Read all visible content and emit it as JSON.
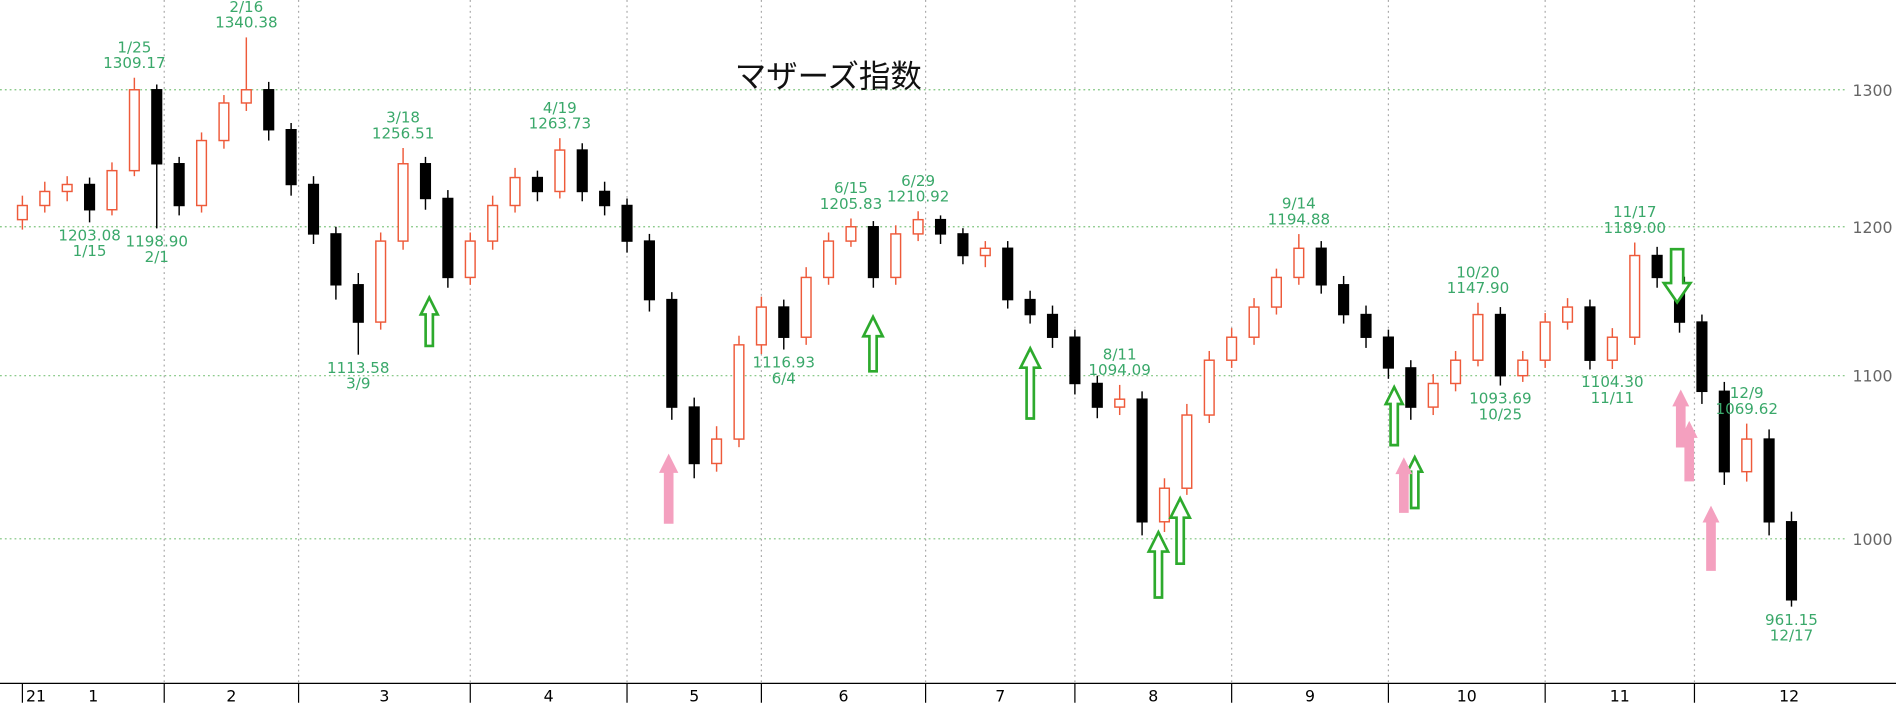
{
  "chart_data": {
    "type": "candlestick",
    "title": "マザーズ指数",
    "log_scale": true,
    "ylim": [
      919,
      1370
    ],
    "yticks": [
      1000,
      1100,
      1200,
      1300
    ],
    "xlim": [
      -3,
      251
    ],
    "xticks": [
      {
        "value": 0,
        "label": "1"
      },
      {
        "value": 19,
        "label": "2"
      },
      {
        "value": 37,
        "label": "3"
      },
      {
        "value": 60,
        "label": "4"
      },
      {
        "value": 81,
        "label": "5"
      },
      {
        "value": 99,
        "label": "6"
      },
      {
        "value": 121,
        "label": "7"
      },
      {
        "value": 141,
        "label": "8"
      },
      {
        "value": 162,
        "label": "9"
      },
      {
        "value": 183,
        "label": "10"
      },
      {
        "value": 204,
        "label": "11"
      },
      {
        "value": 224,
        "label": "12"
      }
    ],
    "year_label": "21",
    "grid": true,
    "up_color": "#ee5a3a",
    "down_color": "#000000",
    "annotation_color": "#3aa86a",
    "x": [
      0,
      3,
      6,
      9,
      12,
      15,
      18,
      21,
      24,
      27,
      30,
      33,
      36,
      39,
      42,
      45,
      48,
      51,
      54,
      57,
      60,
      63,
      66,
      69,
      72,
      75,
      78,
      81,
      84,
      87,
      90,
      93,
      96,
      99,
      102,
      105,
      108,
      111,
      114,
      117,
      120,
      123,
      126,
      129,
      132,
      135,
      138,
      141,
      144,
      147,
      150,
      153,
      156,
      159,
      162,
      165,
      168,
      171,
      174,
      177,
      180,
      183,
      186,
      189,
      192,
      195,
      198,
      201,
      204,
      207,
      210,
      213,
      216,
      219,
      222,
      225,
      228,
      231,
      234,
      237
    ],
    "open": [
      1205,
      1215,
      1225,
      1230,
      1212,
      1240,
      1300,
      1245,
      1215,
      1262,
      1290,
      1300,
      1270,
      1230,
      1195,
      1160,
      1135,
      1190,
      1245,
      1220,
      1165,
      1190,
      1215,
      1235,
      1225,
      1255,
      1225,
      1215,
      1190,
      1150,
      1080,
      1045,
      1060,
      1120,
      1145,
      1125,
      1165,
      1190,
      1200,
      1165,
      1195,
      1205,
      1195,
      1180,
      1185,
      1150,
      1140,
      1125,
      1095,
      1080,
      1085,
      1010,
      1030,
      1075,
      1110,
      1125,
      1145,
      1165,
      1185,
      1160,
      1140,
      1125,
      1105,
      1080,
      1095,
      1110,
      1140,
      1100,
      1110,
      1135,
      1145,
      1110,
      1125,
      1180,
      1165,
      1135,
      1090,
      1040,
      1060,
      1010
    ],
    "high": [
      1222,
      1232,
      1236,
      1235,
      1246,
      1309.17,
      1304,
      1250,
      1268,
      1296,
      1340.38,
      1306,
      1275,
      1236,
      1200,
      1168,
      1196,
      1256.51,
      1250,
      1226,
      1196,
      1222,
      1242,
      1240,
      1263.73,
      1260,
      1232,
      1220,
      1195,
      1155,
      1086,
      1068,
      1126,
      1152,
      1150,
      1172,
      1196,
      1205.83,
      1204,
      1201,
      1210.92,
      1208,
      1199,
      1190,
      1190,
      1156,
      1146,
      1130,
      1100,
      1094.09,
      1090,
      1036,
      1082,
      1116,
      1131,
      1151,
      1171,
      1194.88,
      1190,
      1166,
      1146,
      1130,
      1110,
      1101,
      1116,
      1147.9,
      1145,
      1116,
      1141,
      1151,
      1150,
      1131,
      1189,
      1186,
      1170,
      1140,
      1096,
      1069.62,
      1066,
      1016
    ],
    "low": [
      1198,
      1210,
      1218,
      1203.08,
      1208,
      1236,
      1198.9,
      1208,
      1210,
      1256,
      1284,
      1262,
      1222,
      1188,
      1150,
      1113.58,
      1130,
      1184,
      1212,
      1158,
      1160,
      1184,
      1210,
      1218,
      1220,
      1218,
      1208,
      1182,
      1142,
      1072,
      1036,
      1040,
      1055,
      1114,
      1116.93,
      1120,
      1160,
      1186,
      1158,
      1160,
      1190,
      1188,
      1174,
      1172,
      1144,
      1134,
      1118,
      1088,
      1073,
      1075,
      1002,
      1004,
      1026,
      1070,
      1105,
      1120,
      1140,
      1160,
      1154,
      1134,
      1118,
      1098,
      1072,
      1075,
      1090,
      1106,
      1093.69,
      1096,
      1105,
      1130,
      1104,
      1104.3,
      1120,
      1158,
      1128,
      1082,
      1032,
      1034,
      1002,
      961.15
    ],
    "close": [
      1215,
      1225,
      1230,
      1212,
      1240,
      1300,
      1245,
      1215,
      1262,
      1290,
      1300,
      1270,
      1230,
      1195,
      1160,
      1135,
      1190,
      1245,
      1220,
      1165,
      1190,
      1215,
      1235,
      1225,
      1255,
      1225,
      1215,
      1190,
      1150,
      1080,
      1045,
      1060,
      1120,
      1145,
      1125,
      1165,
      1190,
      1200,
      1165,
      1195,
      1205,
      1195,
      1180,
      1185,
      1150,
      1140,
      1125,
      1095,
      1080,
      1085,
      1010,
      1030,
      1075,
      1110,
      1125,
      1145,
      1165,
      1185,
      1160,
      1140,
      1125,
      1105,
      1080,
      1095,
      1110,
      1140,
      1100,
      1110,
      1135,
      1145,
      1110,
      1125,
      1180,
      1165,
      1135,
      1090,
      1040,
      1060,
      1010,
      965
    ],
    "annotations": [
      {
        "date": "1/15",
        "value": 1203.08,
        "x": 9
      },
      {
        "date": "1/25",
        "value": 1309.17,
        "x": 15
      },
      {
        "date": "2/1",
        "value": 1198.9,
        "value_label": "1198.90",
        "x": 18
      },
      {
        "date": "2/16",
        "value": 1340.38,
        "x": 30
      },
      {
        "date": "3/9",
        "value": 1113.58,
        "x": 45
      },
      {
        "date": "3/18",
        "value": 1256.51,
        "x": 51
      },
      {
        "date": "4/19",
        "value": 1263.73,
        "x": 72
      },
      {
        "date": "6/4",
        "value": 1116.93,
        "x": 102
      },
      {
        "date": "6/15",
        "value": 1205.83,
        "x": 111
      },
      {
        "date": "6/29",
        "value": 1210.92,
        "x": 120
      },
      {
        "date": "8/11",
        "value": 1094.09,
        "x": 147
      },
      {
        "date": "9/14",
        "value": 1194.88,
        "x": 171
      },
      {
        "date": "10/20",
        "value": 1147.9,
        "value_label": "1147.90",
        "x": 195
      },
      {
        "date": "10/25",
        "value": 1093.69,
        "x": 198
      },
      {
        "date": "11/11",
        "value": 1104.3,
        "value_label": "1104.30",
        "x": 213
      },
      {
        "date": "11/17",
        "value": 1189,
        "value_label": "1189.00",
        "x": 216
      },
      {
        "date": "12/9",
        "value": 1069.62,
        "x": 231
      },
      {
        "date": "12/17",
        "value": 961.15,
        "x": 237
      }
    ]
  }
}
